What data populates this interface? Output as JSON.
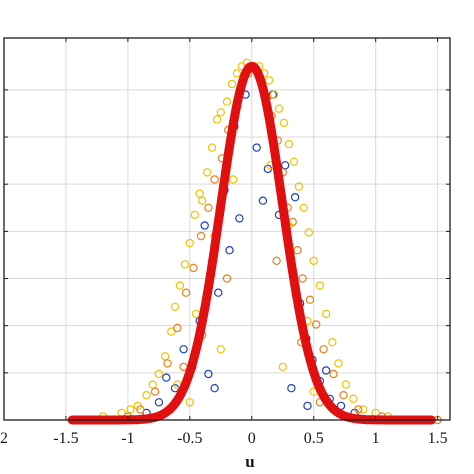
{
  "chart_data": {
    "type": "scatter",
    "title": "",
    "xlabel": "u",
    "ylabel": "",
    "xlim": [
      -2,
      1.6
    ],
    "ylim": [
      0,
      1.08
    ],
    "x_ticks": [
      -1.5,
      -1,
      -0.5,
      0,
      0.5,
      1,
      1.5
    ],
    "x_tick_labels": [
      "-1.5",
      "-1",
      "-0.5",
      "0",
      "0.5",
      "1",
      "1.5"
    ],
    "edge_label": "2",
    "y_ticks": [
      0.1333,
      0.2667,
      0.4,
      0.5333,
      0.6667,
      0.8,
      0.9333
    ],
    "grid": true,
    "colors": {
      "curve": "#e01010",
      "blue": "#1f3fbf",
      "gold": "#f2c200",
      "orange": "#e8801a",
      "frame": "#1a1a1a",
      "grid": "#d9d9d9"
    },
    "curve": {
      "type": "gaussian",
      "amplitude": 1.0,
      "mean": 0.0,
      "sigma": 0.25
    },
    "series": [
      {
        "color": "blue",
        "points": [
          [
            -0.69,
            0.12
          ],
          [
            -0.62,
            0.09
          ],
          [
            -0.55,
            0.2
          ],
          [
            -0.48,
            0.15
          ],
          [
            -0.42,
            0.28
          ],
          [
            -0.38,
            0.55
          ],
          [
            -0.33,
            0.41
          ],
          [
            -0.3,
            0.09
          ],
          [
            -0.27,
            0.36
          ],
          [
            -0.22,
            0.65
          ],
          [
            -0.18,
            0.48
          ],
          [
            -0.14,
            0.83
          ],
          [
            -0.1,
            0.57
          ],
          [
            -0.05,
            0.92
          ],
          [
            0.0,
            1.0
          ],
          [
            0.04,
            0.77
          ],
          [
            0.09,
            0.62
          ],
          [
            0.13,
            0.71
          ],
          [
            0.17,
            0.92
          ],
          [
            0.22,
            0.58
          ],
          [
            0.27,
            0.72
          ],
          [
            0.31,
            0.46
          ],
          [
            0.35,
            0.63
          ],
          [
            0.39,
            0.33
          ],
          [
            0.44,
            0.23
          ],
          [
            0.49,
            0.17
          ],
          [
            0.55,
            0.11
          ],
          [
            0.63,
            0.06
          ],
          [
            0.72,
            0.04
          ],
          [
            0.83,
            0.02
          ],
          [
            -0.85,
            0.02
          ],
          [
            -0.75,
            0.05
          ],
          [
            0.45,
            0.04
          ],
          [
            0.32,
            0.09
          ],
          [
            -0.35,
            0.13
          ],
          [
            0.6,
            0.14
          ]
        ]
      },
      {
        "color": "gold",
        "points": [
          [
            -1.4,
            0.0
          ],
          [
            -1.2,
            0.01
          ],
          [
            -1.05,
            0.02
          ],
          [
            -0.98,
            0.03
          ],
          [
            -0.92,
            0.04
          ],
          [
            -0.85,
            0.07
          ],
          [
            -0.8,
            0.1
          ],
          [
            -0.75,
            0.13
          ],
          [
            -0.7,
            0.18
          ],
          [
            -0.65,
            0.25
          ],
          [
            -0.62,
            0.32
          ],
          [
            -0.58,
            0.38
          ],
          [
            -0.54,
            0.44
          ],
          [
            -0.5,
            0.5
          ],
          [
            -0.46,
            0.58
          ],
          [
            -0.42,
            0.64
          ],
          [
            -0.4,
            0.62
          ],
          [
            -0.36,
            0.7
          ],
          [
            -0.32,
            0.77
          ],
          [
            -0.28,
            0.85
          ],
          [
            -0.25,
            0.87
          ],
          [
            -0.2,
            0.9
          ],
          [
            -0.16,
            0.95
          ],
          [
            -0.12,
            0.98
          ],
          [
            -0.08,
            1.0
          ],
          [
            -0.04,
            1.01
          ],
          [
            0.02,
            1.0
          ],
          [
            0.06,
            1.0
          ],
          [
            0.1,
            0.98
          ],
          [
            0.14,
            0.96
          ],
          [
            0.18,
            0.92
          ],
          [
            0.22,
            0.88
          ],
          [
            0.26,
            0.84
          ],
          [
            0.3,
            0.78
          ],
          [
            0.34,
            0.73
          ],
          [
            0.38,
            0.66
          ],
          [
            0.42,
            0.6
          ],
          [
            0.46,
            0.53
          ],
          [
            0.5,
            0.45
          ],
          [
            0.55,
            0.38
          ],
          [
            0.6,
            0.3
          ],
          [
            0.65,
            0.22
          ],
          [
            0.7,
            0.16
          ],
          [
            0.76,
            0.1
          ],
          [
            0.82,
            0.06
          ],
          [
            0.9,
            0.03
          ],
          [
            1.0,
            0.02
          ],
          [
            1.1,
            0.01
          ],
          [
            1.25,
            0.0
          ],
          [
            -0.6,
            0.1
          ],
          [
            -0.45,
            0.3
          ],
          [
            -0.3,
            0.52
          ],
          [
            -0.15,
            0.68
          ],
          [
            0.15,
            0.72
          ],
          [
            0.3,
            0.55
          ],
          [
            0.45,
            0.28
          ],
          [
            0.5,
            0.08
          ],
          [
            -0.5,
            0.05
          ],
          [
            -0.25,
            0.2
          ],
          [
            0.25,
            0.15
          ]
        ]
      },
      {
        "color": "orange",
        "points": [
          [
            -1.3,
            0.0
          ],
          [
            -1.0,
            0.01
          ],
          [
            -0.9,
            0.03
          ],
          [
            -0.78,
            0.08
          ],
          [
            -0.68,
            0.16
          ],
          [
            -0.6,
            0.26
          ],
          [
            -0.53,
            0.36
          ],
          [
            -0.47,
            0.43
          ],
          [
            -0.41,
            0.52
          ],
          [
            -0.35,
            0.6
          ],
          [
            -0.3,
            0.68
          ],
          [
            -0.24,
            0.74
          ],
          [
            -0.19,
            0.82
          ],
          [
            -0.13,
            0.88
          ],
          [
            -0.09,
            0.94
          ],
          [
            -0.03,
            0.98
          ],
          [
            0.03,
            0.99
          ],
          [
            0.08,
            0.95
          ],
          [
            0.12,
            0.91
          ],
          [
            0.16,
            0.86
          ],
          [
            0.21,
            0.79
          ],
          [
            0.25,
            0.7
          ],
          [
            0.29,
            0.6
          ],
          [
            0.33,
            0.56
          ],
          [
            0.37,
            0.48
          ],
          [
            0.41,
            0.4
          ],
          [
            0.47,
            0.34
          ],
          [
            0.52,
            0.27
          ],
          [
            0.58,
            0.2
          ],
          [
            0.66,
            0.13
          ],
          [
            0.74,
            0.07
          ],
          [
            0.86,
            0.03
          ],
          [
            1.05,
            0.01
          ],
          [
            1.5,
            0.0
          ],
          [
            -0.55,
            0.15
          ],
          [
            -0.4,
            0.24
          ],
          [
            -0.2,
            0.4
          ],
          [
            0.2,
            0.45
          ],
          [
            0.4,
            0.22
          ],
          [
            0.55,
            0.05
          ]
        ]
      }
    ]
  }
}
